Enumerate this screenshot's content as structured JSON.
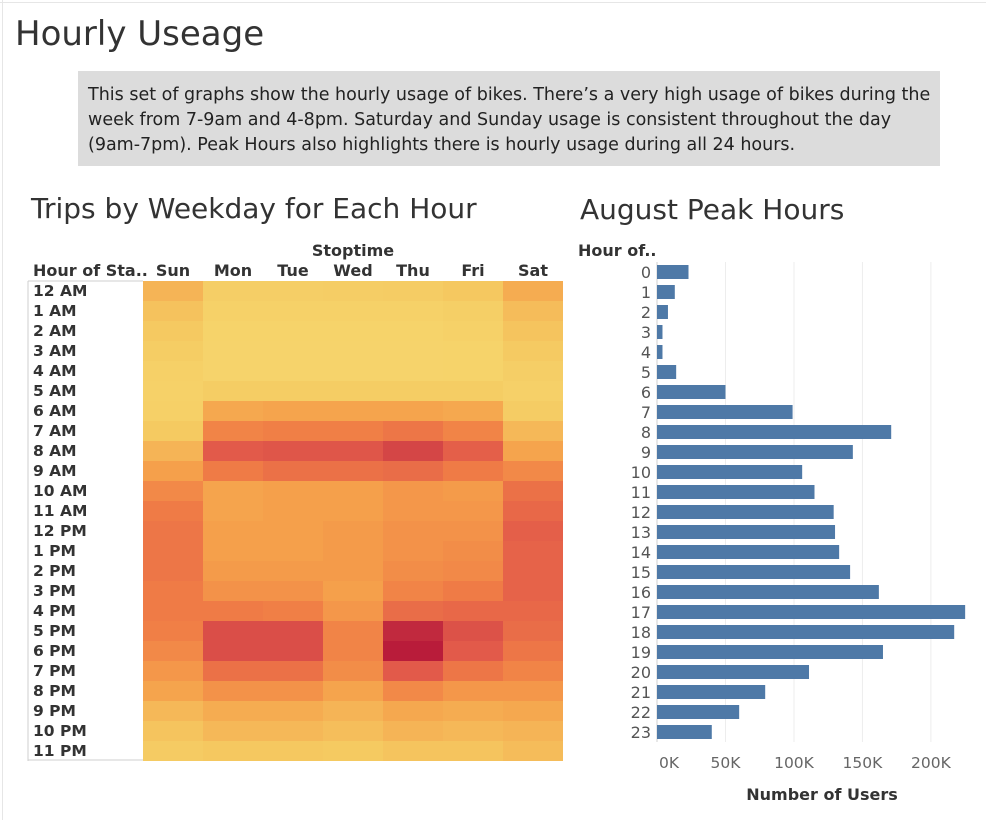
{
  "page": {
    "title": "Hourly Useage",
    "description": "This set of graphs show the hourly usage of bikes. There’s a very high usage of bikes during the week from 7-9am and 4-8pm. Saturday and Sunday usage is consistent throughout the day (9am-7pm). Peak Hours also highlights there is hourly usage during all 24 hours."
  },
  "chart_data": [
    {
      "type": "heatmap",
      "title": "Trips by Weekday for Each Hour",
      "column_group_label": "Stoptime",
      "row_header": "Hour of Sta..",
      "columns": [
        "Sun",
        "Mon",
        "Tue",
        "Wed",
        "Thu",
        "Fri",
        "Sat"
      ],
      "rows": [
        "12 AM",
        "1 AM",
        "2 AM",
        "3 AM",
        "4 AM",
        "5 AM",
        "6 AM",
        "7 AM",
        "8 AM",
        "9 AM",
        "10 AM",
        "11 AM",
        "12 PM",
        "1 PM",
        "2 PM",
        "3 PM",
        "4 PM",
        "5 PM",
        "6 PM",
        "7 PM",
        "8 PM",
        "9 PM",
        "10 PM",
        "11 PM"
      ],
      "values": [
        [
          0.3,
          0.12,
          0.12,
          0.13,
          0.15,
          0.2,
          0.34
        ],
        [
          0.23,
          0.08,
          0.08,
          0.08,
          0.08,
          0.11,
          0.26
        ],
        [
          0.19,
          0.06,
          0.06,
          0.06,
          0.06,
          0.08,
          0.22
        ],
        [
          0.14,
          0.05,
          0.05,
          0.05,
          0.05,
          0.06,
          0.17
        ],
        [
          0.1,
          0.05,
          0.05,
          0.05,
          0.05,
          0.06,
          0.12
        ],
        [
          0.08,
          0.14,
          0.14,
          0.14,
          0.14,
          0.14,
          0.09
        ],
        [
          0.1,
          0.36,
          0.38,
          0.38,
          0.38,
          0.36,
          0.15
        ],
        [
          0.18,
          0.52,
          0.54,
          0.54,
          0.58,
          0.52,
          0.28
        ],
        [
          0.3,
          0.7,
          0.72,
          0.72,
          0.8,
          0.68,
          0.38
        ],
        [
          0.4,
          0.56,
          0.6,
          0.6,
          0.62,
          0.56,
          0.5
        ],
        [
          0.5,
          0.38,
          0.4,
          0.4,
          0.44,
          0.42,
          0.6
        ],
        [
          0.56,
          0.38,
          0.4,
          0.4,
          0.44,
          0.44,
          0.64
        ],
        [
          0.58,
          0.4,
          0.4,
          0.42,
          0.46,
          0.46,
          0.68
        ],
        [
          0.58,
          0.4,
          0.4,
          0.42,
          0.46,
          0.48,
          0.66
        ],
        [
          0.58,
          0.42,
          0.42,
          0.42,
          0.48,
          0.5,
          0.66
        ],
        [
          0.56,
          0.46,
          0.46,
          0.4,
          0.52,
          0.56,
          0.66
        ],
        [
          0.56,
          0.56,
          0.54,
          0.44,
          0.62,
          0.64,
          0.64
        ],
        [
          0.54,
          0.76,
          0.76,
          0.52,
          0.92,
          0.74,
          0.62
        ],
        [
          0.5,
          0.76,
          0.76,
          0.52,
          0.97,
          0.7,
          0.58
        ],
        [
          0.44,
          0.6,
          0.6,
          0.48,
          0.7,
          0.58,
          0.52
        ],
        [
          0.38,
          0.46,
          0.46,
          0.38,
          0.5,
          0.44,
          0.44
        ],
        [
          0.28,
          0.34,
          0.34,
          0.3,
          0.36,
          0.34,
          0.36
        ],
        [
          0.22,
          0.28,
          0.28,
          0.25,
          0.3,
          0.28,
          0.3
        ],
        [
          0.16,
          0.2,
          0.2,
          0.18,
          0.22,
          0.22,
          0.26
        ]
      ]
    },
    {
      "type": "bar",
      "orientation": "horizontal",
      "title": "August Peak Hours",
      "category_header": "Hour of..",
      "categories": [
        "0",
        "1",
        "2",
        "3",
        "4",
        "5",
        "6",
        "7",
        "8",
        "9",
        "10",
        "11",
        "12",
        "13",
        "14",
        "15",
        "16",
        "17",
        "18",
        "19",
        "20",
        "21",
        "22",
        "23"
      ],
      "values": [
        23000,
        13000,
        8000,
        4000,
        4000,
        14000,
        50000,
        99000,
        171000,
        143000,
        106000,
        115000,
        129000,
        130000,
        133000,
        141000,
        162000,
        225000,
        217000,
        165000,
        111000,
        79000,
        60000,
        40000
      ],
      "xlabel": "Number of Users",
      "xticks": [
        "0K",
        "50K",
        "100K",
        "150K",
        "200K"
      ],
      "xlim": [
        0,
        230000
      ],
      "bar_color": "#4e79a7",
      "grid": true
    }
  ]
}
